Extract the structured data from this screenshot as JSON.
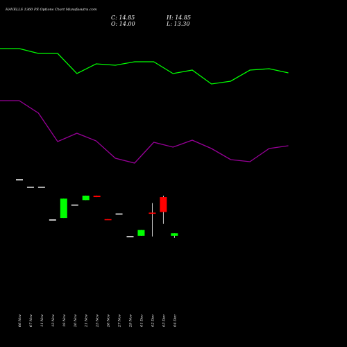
{
  "title": "HAVELLS 1360 PE Options Chart Munafasutra.com",
  "ohlc": {
    "c": "C: 14.85",
    "h": "H: 14.85",
    "o": "O: 14.00",
    "l": "L: 13.30"
  },
  "colors": {
    "upper_line": "#00ff00",
    "lower_line": "#990099",
    "up": "#00ff00",
    "down": "#ff0000",
    "flat": "#ffffff"
  },
  "chart_data": {
    "type": "candlestick",
    "title": "HAVELLS 1360 PE Options Chart Munafasutra.com",
    "categories": [
      "06 Nov",
      "07 Nov",
      "11 Nov",
      "13 Nov",
      "19 Nov",
      "20 Nov",
      "21 Nov",
      "25 Nov",
      "26 Nov",
      "27 Nov",
      "29 Nov",
      "01 Dec",
      "02 Dec",
      "03 Dec",
      "04 Dec"
    ],
    "candles": [
      {
        "date": "06 Nov",
        "open": 33.0,
        "high": 33.0,
        "low": 33.0,
        "close": 33.0,
        "dir": "flat"
      },
      {
        "date": "07 Nov",
        "open": 30.5,
        "high": 30.5,
        "low": 30.5,
        "close": 30.5,
        "dir": "flat"
      },
      {
        "date": "11 Nov",
        "open": 30.5,
        "high": 30.5,
        "low": 30.5,
        "close": 30.5,
        "dir": "flat"
      },
      {
        "date": "13 Nov",
        "open": 19.5,
        "high": 19.5,
        "low": 19.5,
        "close": 19.5,
        "dir": "flat"
      },
      {
        "date": "19 Nov",
        "open": 20.0,
        "high": 26.5,
        "low": 20.0,
        "close": 26.5,
        "dir": "up"
      },
      {
        "date": "20 Nov",
        "open": 24.5,
        "high": 24.5,
        "low": 24.5,
        "close": 24.5,
        "dir": "flat"
      },
      {
        "date": "21 Nov",
        "open": 26.0,
        "high": 27.5,
        "low": 26.0,
        "close": 27.5,
        "dir": "up"
      },
      {
        "date": "25 Nov",
        "open": 27.5,
        "high": 27.5,
        "low": 27.0,
        "close": 27.0,
        "dir": "down"
      },
      {
        "date": "26 Nov",
        "open": 19.6,
        "high": 19.6,
        "low": 19.4,
        "close": 19.4,
        "dir": "down"
      },
      {
        "date": "27 Nov",
        "open": 21.5,
        "high": 21.5,
        "low": 21.5,
        "close": 21.5,
        "dir": "flat"
      },
      {
        "date": "29 Nov",
        "open": 13.9,
        "high": 13.9,
        "low": 13.9,
        "close": 13.9,
        "dir": "flat"
      },
      {
        "date": "01 Dec",
        "open": 14.0,
        "high": 16.0,
        "low": 14.0,
        "close": 16.0,
        "dir": "up"
      },
      {
        "date": "02 Dec",
        "open": 21.8,
        "high": 25.0,
        "low": 13.8,
        "close": 21.4,
        "dir": "down"
      },
      {
        "date": "03 Dec",
        "open": 27.0,
        "high": 27.5,
        "low": 18.0,
        "close": 22.0,
        "dir": "down"
      },
      {
        "date": "04 Dec",
        "open": 14.0,
        "high": 14.85,
        "low": 13.3,
        "close": 14.85,
        "dir": "up"
      }
    ],
    "upper_line": [
      70,
      70,
      77,
      77,
      106,
      92,
      94,
      89,
      89,
      106,
      101,
      121,
      117,
      101,
      99,
      105
    ],
    "lower_line": [
      145,
      145,
      163,
      204,
      192,
      203,
      228,
      235,
      205,
      212,
      202,
      214,
      230,
      233,
      214,
      210
    ]
  }
}
